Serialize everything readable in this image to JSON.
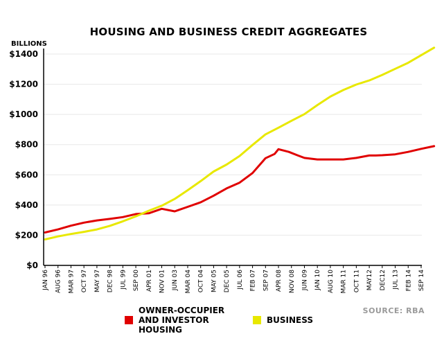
{
  "chart_data": {
    "type": "line",
    "title": "HOUSING AND BUSINESS CREDIT AGGREGATES",
    "ylabel": "BILLIONS",
    "source": "SOURCE: RBA",
    "ylim": [
      0,
      1400
    ],
    "y_ticks": [
      "$0",
      "$200",
      "$400",
      "$600",
      "$800",
      "$1000",
      "$1200",
      "$1400"
    ],
    "y_tick_values": [
      0,
      200,
      400,
      600,
      800,
      1000,
      1200,
      1400
    ],
    "x_ticks": [
      "JAN 96",
      "AUG 96",
      "MAR 97",
      "OCT 97",
      "MAY 97",
      "DEC 98",
      "JUL 99",
      "SEP 00",
      "APR 01",
      "NOV 01",
      "JUN 03",
      "MAR 04",
      "OCT 04",
      "MAY 05",
      "DEC 05",
      "JUL 06",
      "FEB 07",
      "SEP 07",
      "APR 08",
      "NOV 08",
      "JUN 09",
      "JAN 10",
      "AUG 10",
      "MAR 11",
      "OCT 11",
      "MAY12",
      "DEC12",
      "JUL 13",
      "FEB 14",
      "SEP 14"
    ],
    "grid": true,
    "legend_placement": "bottom",
    "series": [
      {
        "name": "OWNER-OCCUPIER AND INVESTOR HOUSING",
        "color": "#e00000",
        "x": [
          0,
          1,
          2,
          3,
          4,
          5,
          6,
          7,
          8,
          9,
          10,
          11,
          12,
          13,
          14,
          15,
          16,
          17,
          17.7,
          18,
          18.8,
          19.5,
          20,
          21,
          22,
          23,
          24,
          24.5,
          25,
          25.5,
          26,
          27,
          28,
          29,
          30
        ],
        "values": [
          218,
          238,
          263,
          283,
          298,
          308,
          320,
          340,
          345,
          375,
          358,
          388,
          418,
          462,
          510,
          548,
          612,
          710,
          738,
          770,
          752,
          728,
          712,
          702,
          702,
          702,
          712,
          720,
          728,
          728,
          730,
          736,
          752,
          772,
          790
        ]
      },
      {
        "name": "BUSINESS",
        "color": "#e8e800",
        "x": [
          0,
          1,
          2,
          3,
          4,
          5,
          6,
          7,
          8,
          9,
          10,
          11,
          12,
          13,
          14,
          15,
          16,
          17,
          18,
          19,
          20,
          21,
          22,
          23,
          24,
          25,
          26,
          27,
          28,
          29,
          30
        ],
        "values": [
          172,
          192,
          208,
          222,
          238,
          262,
          292,
          325,
          362,
          395,
          440,
          498,
          558,
          622,
          668,
          725,
          798,
          868,
          912,
          958,
          1002,
          1062,
          1118,
          1162,
          1198,
          1225,
          1262,
          1302,
          1342,
          1392,
          1442
        ]
      }
    ]
  }
}
